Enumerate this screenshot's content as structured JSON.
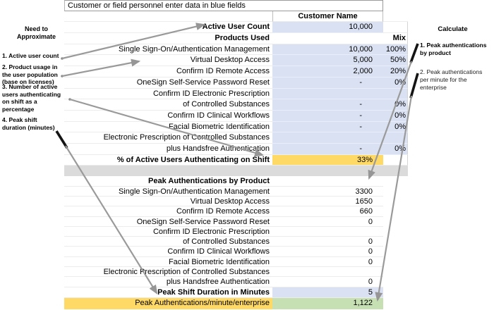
{
  "banner": "Customer or field personnel enter data in blue fields",
  "left_notes": {
    "title": "Need to\nApproximate",
    "items": [
      "1. Active user count",
      "2. Product usage in\nthe user population\n(base on licenses)",
      "3. Number of active\nusers authenticating\non shift as a\npercentage",
      "4. Peak shift\nduration (minutes)"
    ]
  },
  "right_notes": {
    "title": "Calculate",
    "items": [
      "1. Peak authentications\nby product",
      "2. Peak authentications\nper minute for the\nenterprise"
    ]
  },
  "section1": {
    "customer_name_label": "Customer Name",
    "active_user_count_label": "Active User Count",
    "active_user_count_value": "10,000",
    "products_used_label": "Products Used",
    "mix_label": "Mix",
    "rows": [
      {
        "label": "Single Sign-On/Authentication Management",
        "value": "10,000",
        "mix": "100%"
      },
      {
        "label": "Virtual Desktop Access",
        "value": "5,000",
        "mix": "50%"
      },
      {
        "label": "Confirm ID Remote Access",
        "value": "2,000",
        "mix": "20%"
      },
      {
        "label": "OneSign Self-Service Password Reset",
        "value": "-",
        "mix": "0%"
      },
      {
        "label": "Confirm ID Electronic Prescription",
        "value": "",
        "mix": ""
      },
      {
        "label": "of Controlled Substances",
        "value": "-",
        "mix": "0%"
      },
      {
        "label": "Confirm ID Clinical Workflows",
        "value": "-",
        "mix": "0%"
      },
      {
        "label": "Facial Biometric Identification",
        "value": "-",
        "mix": "0%"
      },
      {
        "label": "Electronic Prescription of Controlled Substances",
        "value": "",
        "mix": ""
      },
      {
        "label": "plus Handsfree Authentication",
        "value": "-",
        "mix": "0%"
      }
    ],
    "pct_active_label": "% of Active Users Authenticating on Shift",
    "pct_active_value": "33%"
  },
  "section2": {
    "header": "Peak Authentications by Product",
    "rows": [
      {
        "label": "Single Sign-On/Authentication Management",
        "value": "3300"
      },
      {
        "label": "Virtual Desktop Access",
        "value": "1650"
      },
      {
        "label": "Confirm ID Remote Access",
        "value": "660"
      },
      {
        "label": "OneSign Self-Service Password Reset",
        "value": "0"
      },
      {
        "label": "Confirm ID Electronic Prescription",
        "value": ""
      },
      {
        "label": "of Controlled Substances",
        "value": "0"
      },
      {
        "label": "Confirm ID Clinical Workflows",
        "value": "0"
      },
      {
        "label": "Facial Biometric Identification",
        "value": "0"
      },
      {
        "label": "Electronic Prescription of Controlled Substances",
        "value": ""
      },
      {
        "label": "plus Handsfree Authentication",
        "value": "0"
      }
    ],
    "shift_duration_label": "Peak Shift Duration in Minutes",
    "shift_duration_value": "5",
    "enterprise_label": "Peak Authentications/minute/enterprise",
    "enterprise_value": "1,122"
  },
  "colors": {
    "input_blue": "#D9E1F2",
    "highlight_yellow": "#FFD966",
    "result_green": "#C6E0B4",
    "band_gray": "#DBDBDB"
  }
}
